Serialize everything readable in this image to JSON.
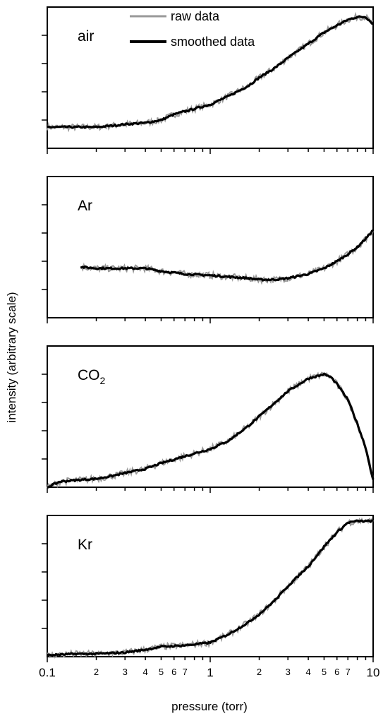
{
  "chart_data": {
    "type": "line",
    "xlabel": "pressure (torr)",
    "ylabel": "intensity (arbitrary scale)",
    "x_scale": "log",
    "xlim": [
      0.1,
      10
    ],
    "x_tick_labels": [
      "0.1",
      "1",
      "10"
    ],
    "x_minor_tick_labels": [
      "2",
      "3",
      "4",
      "5",
      "6",
      "7",
      "2",
      "3",
      "4",
      "5",
      "6",
      "7"
    ],
    "legend": {
      "placement": "top (first panel)",
      "entries": [
        {
          "label": "raw data",
          "color": "#999999"
        },
        {
          "label": "smoothed data",
          "color": "#000000"
        }
      ]
    },
    "panels": [
      {
        "label": "air",
        "ylim": [
          0,
          1
        ],
        "series": [
          {
            "name": "smoothed data",
            "x": [
              0.1,
              0.13,
              0.17,
              0.2,
              0.25,
              0.3,
              0.4,
              0.5,
              0.6,
              0.8,
              1.0,
              1.3,
              1.7,
              2.0,
              2.5,
              3.0,
              4.0,
              5.0,
              6.0,
              7.0,
              8.0,
              9.0,
              10.0
            ],
            "y": [
              0.15,
              0.15,
              0.15,
              0.15,
              0.16,
              0.17,
              0.18,
              0.2,
              0.24,
              0.28,
              0.31,
              0.37,
              0.44,
              0.5,
              0.57,
              0.64,
              0.74,
              0.82,
              0.87,
              0.91,
              0.93,
              0.93,
              0.88
            ]
          }
        ]
      },
      {
        "label": "Ar",
        "ylim": [
          0,
          1
        ],
        "series": [
          {
            "name": "smoothed data",
            "x": [
              0.16,
              0.2,
              0.25,
              0.3,
              0.4,
              0.5,
              0.7,
              1.0,
              1.3,
              1.7,
              2.0,
              2.5,
              3.0,
              4.0,
              5.0,
              6.0,
              7.0,
              8.0,
              9.0,
              10.0
            ],
            "y": [
              0.36,
              0.35,
              0.35,
              0.35,
              0.35,
              0.33,
              0.31,
              0.3,
              0.29,
              0.28,
              0.27,
              0.27,
              0.28,
              0.31,
              0.35,
              0.4,
              0.45,
              0.5,
              0.56,
              0.62
            ]
          }
        ]
      },
      {
        "label": "CO₂",
        "ylim": [
          0,
          1
        ],
        "series": [
          {
            "name": "smoothed data",
            "x": [
              0.1,
              0.12,
              0.15,
              0.2,
              0.25,
              0.3,
              0.4,
              0.5,
              0.7,
              1.0,
              1.3,
              1.7,
              2.0,
              2.5,
              3.0,
              4.0,
              5.0,
              5.5,
              6.0,
              7.0,
              8.0,
              9.0,
              10.0
            ],
            "y": [
              0.0,
              0.04,
              0.05,
              0.06,
              0.08,
              0.1,
              0.13,
              0.17,
              0.22,
              0.27,
              0.33,
              0.43,
              0.5,
              0.6,
              0.68,
              0.77,
              0.8,
              0.78,
              0.73,
              0.62,
              0.45,
              0.28,
              0.05
            ]
          }
        ]
      },
      {
        "label": "Kr",
        "ylim": [
          0,
          1
        ],
        "series": [
          {
            "name": "smoothed data",
            "x": [
              0.1,
              0.15,
              0.2,
              0.3,
              0.4,
              0.5,
              0.7,
              1.0,
              1.3,
              1.7,
              2.0,
              2.5,
              3.0,
              4.0,
              5.0,
              6.0,
              7.0,
              8.0,
              9.0,
              10.0
            ],
            "y": [
              0.01,
              0.02,
              0.02,
              0.03,
              0.05,
              0.07,
              0.08,
              0.1,
              0.16,
              0.24,
              0.3,
              0.4,
              0.5,
              0.64,
              0.78,
              0.88,
              0.95,
              0.96,
              0.96,
              0.96
            ]
          }
        ]
      }
    ]
  }
}
